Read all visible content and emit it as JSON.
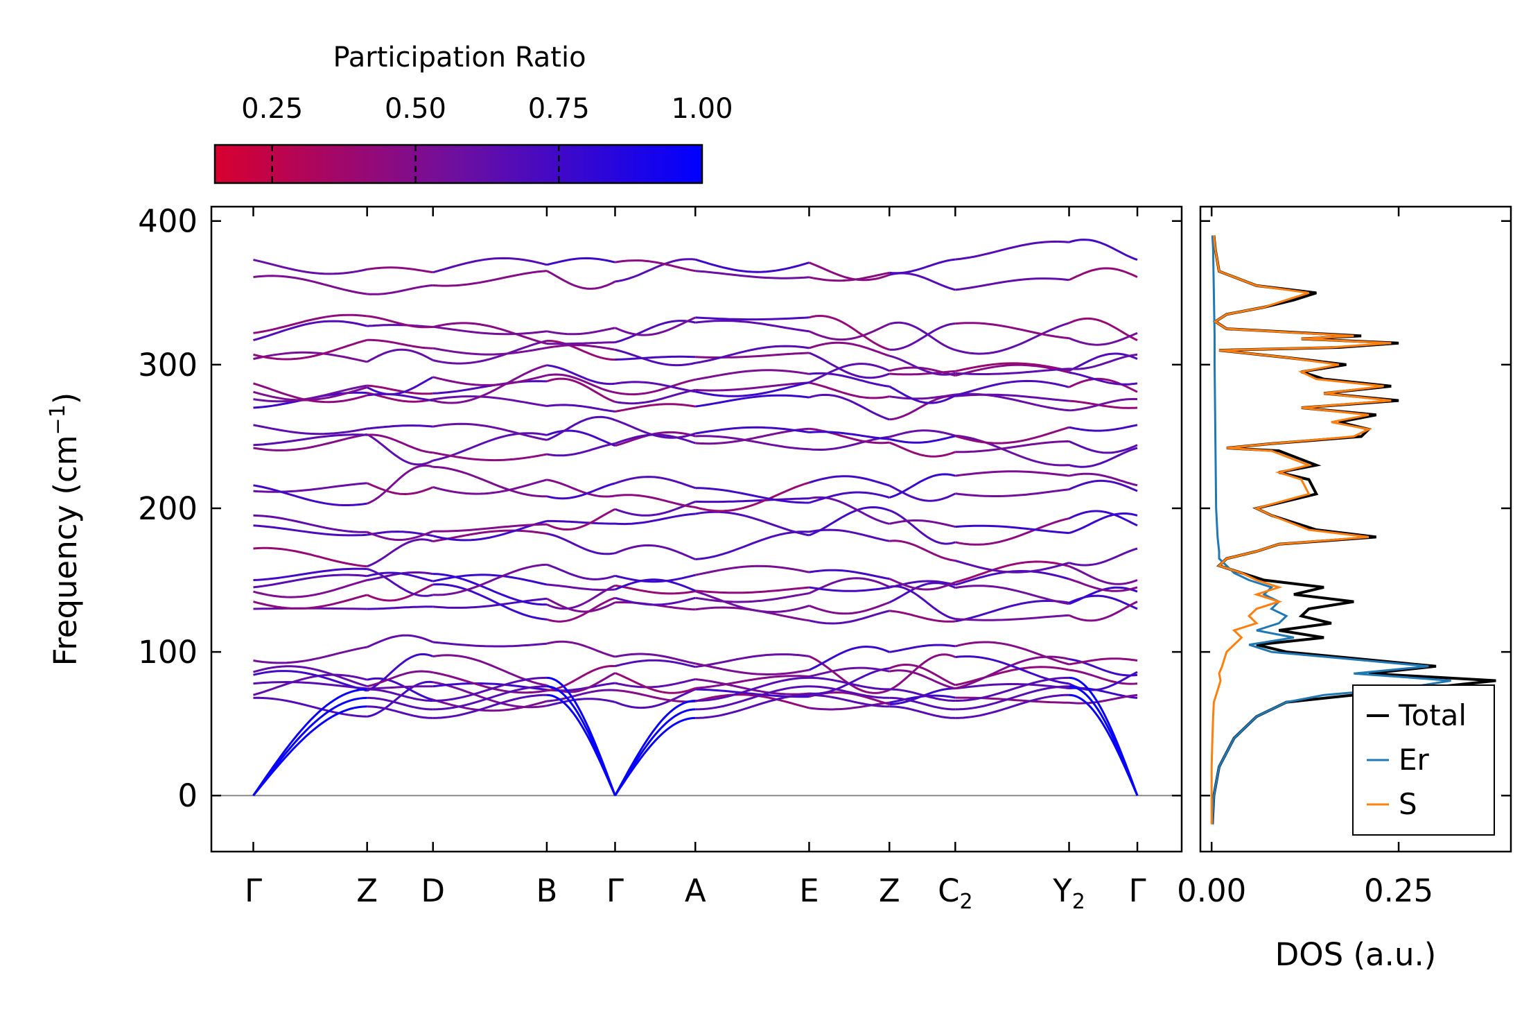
{
  "chart_data": [
    {
      "type": "line",
      "subtype": "phonon-band-structure",
      "ylabel": "Frequency (cm",
      "ylabel_sup": "−1",
      "ylabel_close": ")",
      "ylim": [
        -39,
        410
      ],
      "yticks": [
        0,
        100,
        200,
        300,
        400
      ],
      "ytick_labels": [
        "0",
        "100",
        "200",
        "300",
        "400"
      ],
      "xlim": [
        -0.35,
        7.75
      ],
      "high_symmetry_points": [
        {
          "label": "Γ",
          "sub": "",
          "x": 0.0
        },
        {
          "label": "Z",
          "sub": "",
          "x": 0.95
        },
        {
          "label": "D",
          "sub": "",
          "x": 1.5
        },
        {
          "label": "B",
          "sub": "",
          "x": 2.45
        },
        {
          "label": "Γ",
          "sub": "",
          "x": 3.02
        },
        {
          "label": "A",
          "sub": "",
          "x": 3.69
        },
        {
          "label": "E",
          "sub": "",
          "x": 4.64
        },
        {
          "label": "Z",
          "sub": "",
          "x": 5.31
        },
        {
          "label": "C",
          "sub": "2",
          "x": 5.86
        },
        {
          "label": "Y",
          "sub": "2",
          "x": 6.81
        },
        {
          "label": "Γ",
          "sub": "",
          "x": 7.38
        }
      ],
      "colorbar": {
        "title": "Participation Ratio",
        "range": [
          0.15,
          1.0
        ],
        "color_low": "#d8002f",
        "color_mid": "#6d0fa0",
        "color_high": "#0000ff",
        "ticks": [
          0.25,
          0.5,
          0.75,
          1.0
        ],
        "tick_labels": [
          "0.25",
          "0.50",
          "0.75",
          "1.00"
        ]
      },
      "branches": {
        "acoustic": [
          {
            "endpoints": [
              0,
              0,
              0
            ],
            "peak": 82
          },
          {
            "endpoints": [
              0,
              0,
              0
            ],
            "peak": 80
          },
          {
            "endpoints": [
              0,
              0,
              0
            ],
            "peak": 78
          }
        ],
        "optical_gamma_values": [
          68,
          70,
          78,
          84,
          86,
          94,
          130,
          135,
          142,
          145,
          150,
          172,
          188,
          195,
          212,
          216,
          242,
          244,
          258,
          270,
          276,
          281,
          287,
          304,
          307,
          317,
          322,
          361,
          373
        ]
      }
    },
    {
      "type": "line",
      "subtype": "density-of-states",
      "xlabel": "DOS (a.u.)",
      "xlim": [
        -0.015,
        0.4
      ],
      "xticks": [
        0.0,
        0.25
      ],
      "xtick_labels": [
        "0.00",
        "0.25"
      ],
      "ylim": [
        -39,
        410
      ],
      "series": [
        {
          "name": "Total",
          "color": "#000000",
          "y": [
            -20,
            0,
            20,
            40,
            55,
            65,
            70,
            75,
            80,
            85,
            90,
            100,
            105,
            110,
            115,
            120,
            125,
            130,
            135,
            140,
            145,
            150,
            155,
            160,
            165,
            170,
            175,
            180,
            185,
            195,
            200,
            210,
            220,
            225,
            230,
            240,
            242,
            245,
            250,
            255,
            260,
            265,
            270,
            275,
            280,
            285,
            290,
            295,
            300,
            305,
            310,
            312,
            315,
            318,
            320,
            325,
            330,
            335,
            340,
            345,
            350,
            355,
            365,
            380,
            390
          ],
          "x": [
            0.001,
            0.003,
            0.01,
            0.03,
            0.06,
            0.1,
            0.19,
            0.29,
            0.38,
            0.21,
            0.3,
            0.1,
            0.06,
            0.15,
            0.09,
            0.16,
            0.12,
            0.13,
            0.19,
            0.11,
            0.15,
            0.07,
            0.04,
            0.01,
            0.02,
            0.06,
            0.09,
            0.22,
            0.14,
            0.08,
            0.06,
            0.14,
            0.13,
            0.09,
            0.14,
            0.09,
            0.02,
            0.08,
            0.2,
            0.21,
            0.17,
            0.22,
            0.12,
            0.25,
            0.15,
            0.24,
            0.15,
            0.12,
            0.18,
            0.1,
            0.01,
            0.17,
            0.25,
            0.12,
            0.2,
            0.02,
            0.005,
            0.02,
            0.07,
            0.11,
            0.14,
            0.06,
            0.01,
            0.005,
            0.003
          ]
        },
        {
          "name": "Er",
          "color": "#1f77b4",
          "y": [
            -20,
            0,
            20,
            40,
            55,
            65,
            70,
            75,
            80,
            85,
            90,
            100,
            105,
            110,
            115,
            120,
            125,
            130,
            135,
            140,
            145,
            150,
            155,
            160,
            165,
            170,
            180,
            200,
            250,
            300,
            320,
            350,
            380,
            390
          ],
          "x": [
            0.001,
            0.003,
            0.01,
            0.03,
            0.06,
            0.1,
            0.15,
            0.26,
            0.32,
            0.19,
            0.29,
            0.08,
            0.05,
            0.11,
            0.06,
            0.09,
            0.1,
            0.08,
            0.09,
            0.07,
            0.08,
            0.05,
            0.03,
            0.02,
            0.01,
            0.01,
            0.008,
            0.006,
            0.005,
            0.004,
            0.004,
            0.003,
            0.002,
            0.001
          ]
        },
        {
          "name": "S",
          "color": "#ff7f0e",
          "y": [
            -20,
            0,
            20,
            40,
            55,
            65,
            70,
            75,
            80,
            85,
            90,
            100,
            105,
            110,
            115,
            120,
            125,
            130,
            135,
            140,
            145,
            150,
            155,
            160,
            165,
            170,
            175,
            180,
            185,
            195,
            200,
            210,
            220,
            225,
            230,
            240,
            242,
            245,
            250,
            255,
            260,
            265,
            270,
            275,
            280,
            285,
            290,
            295,
            300,
            305,
            310,
            312,
            315,
            318,
            320,
            325,
            330,
            335,
            340,
            345,
            350,
            355,
            365,
            380,
            390
          ],
          "x": [
            0.0,
            0.0,
            0.0,
            0.001,
            0.002,
            0.003,
            0.006,
            0.009,
            0.012,
            0.01,
            0.014,
            0.02,
            0.03,
            0.04,
            0.03,
            0.06,
            0.05,
            0.06,
            0.09,
            0.06,
            0.09,
            0.06,
            0.04,
            0.01,
            0.02,
            0.06,
            0.09,
            0.21,
            0.13,
            0.08,
            0.06,
            0.13,
            0.12,
            0.09,
            0.13,
            0.08,
            0.02,
            0.08,
            0.19,
            0.21,
            0.16,
            0.21,
            0.12,
            0.24,
            0.15,
            0.23,
            0.14,
            0.12,
            0.17,
            0.1,
            0.01,
            0.16,
            0.24,
            0.12,
            0.19,
            0.02,
            0.005,
            0.02,
            0.07,
            0.1,
            0.13,
            0.06,
            0.01,
            0.005,
            0.003
          ]
        }
      ],
      "legend": {
        "placement": "lower-right",
        "entries": [
          "Total",
          "Er",
          "S"
        ]
      }
    }
  ]
}
